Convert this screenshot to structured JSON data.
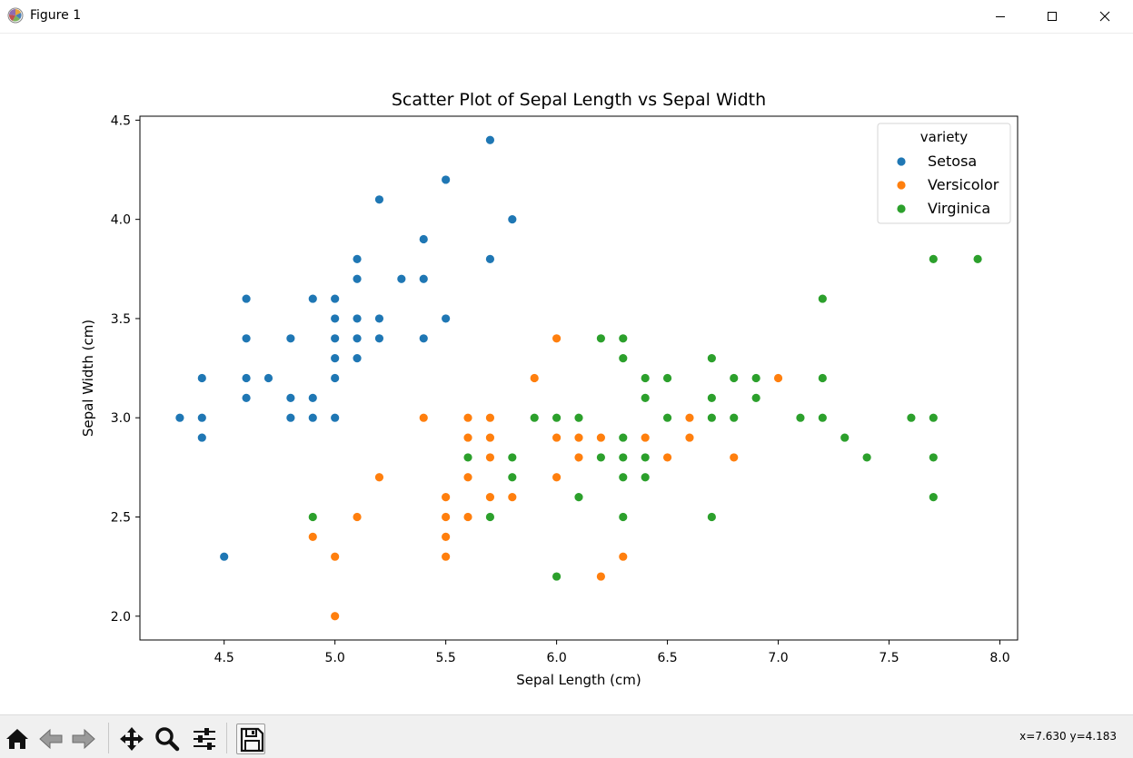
{
  "window": {
    "title": "Figure 1",
    "controls": [
      "minimize-icon",
      "maximize-icon",
      "close-icon"
    ]
  },
  "toolbar": {
    "buttons": [
      "home-icon",
      "back-arrow-icon",
      "forward-arrow-icon",
      "pan-move-icon",
      "zoom-magnifier-icon",
      "configure-subplots-icon",
      "save-disk-icon"
    ],
    "coordinates": "x=7.630 y=4.183"
  },
  "chart_data": {
    "type": "scatter",
    "title": "Scatter Plot of Sepal Length vs Sepal Width",
    "xlabel": "Sepal Length (cm)",
    "ylabel": "Sepal Width (cm)",
    "xlim": [
      4.12,
      8.08
    ],
    "ylim": [
      1.88,
      4.52
    ],
    "xticks": [
      "4.5",
      "5.0",
      "5.5",
      "6.0",
      "6.5",
      "7.0",
      "7.5",
      "8.0"
    ],
    "yticks": [
      "2.0",
      "2.5",
      "3.0",
      "3.5",
      "4.0",
      "4.5"
    ],
    "grid": false,
    "legend": {
      "title": "variety",
      "position": "top-right"
    },
    "series": [
      {
        "name": "Setosa",
        "color": "#1f77b4",
        "points": [
          [
            4.3,
            3.0
          ],
          [
            4.4,
            3.2
          ],
          [
            4.4,
            3.0
          ],
          [
            4.4,
            2.9
          ],
          [
            4.5,
            2.3
          ],
          [
            4.6,
            3.6
          ],
          [
            4.6,
            3.4
          ],
          [
            4.6,
            3.2
          ],
          [
            4.6,
            3.1
          ],
          [
            4.7,
            3.2
          ],
          [
            4.8,
            3.4
          ],
          [
            4.8,
            3.1
          ],
          [
            4.8,
            3.0
          ],
          [
            4.9,
            3.6
          ],
          [
            4.9,
            3.1
          ],
          [
            4.9,
            3.0
          ],
          [
            5.0,
            3.6
          ],
          [
            5.0,
            3.5
          ],
          [
            5.0,
            3.4
          ],
          [
            5.0,
            3.3
          ],
          [
            5.0,
            3.2
          ],
          [
            5.0,
            3.0
          ],
          [
            5.1,
            3.8
          ],
          [
            5.1,
            3.7
          ],
          [
            5.1,
            3.5
          ],
          [
            5.1,
            3.4
          ],
          [
            5.1,
            3.3
          ],
          [
            5.2,
            4.1
          ],
          [
            5.2,
            3.5
          ],
          [
            5.2,
            3.4
          ],
          [
            5.3,
            3.7
          ],
          [
            5.4,
            3.9
          ],
          [
            5.4,
            3.7
          ],
          [
            5.4,
            3.4
          ],
          [
            5.5,
            4.2
          ],
          [
            5.5,
            3.5
          ],
          [
            5.7,
            4.4
          ],
          [
            5.7,
            3.8
          ],
          [
            5.8,
            4.0
          ]
        ]
      },
      {
        "name": "Versicolor",
        "color": "#ff7f0e",
        "points": [
          [
            4.9,
            2.4
          ],
          [
            5.0,
            2.3
          ],
          [
            5.0,
            2.0
          ],
          [
            5.1,
            2.5
          ],
          [
            5.2,
            2.7
          ],
          [
            5.4,
            3.0
          ],
          [
            5.5,
            2.6
          ],
          [
            5.5,
            2.5
          ],
          [
            5.5,
            2.4
          ],
          [
            5.5,
            2.3
          ],
          [
            5.6,
            3.0
          ],
          [
            5.6,
            2.9
          ],
          [
            5.6,
            2.7
          ],
          [
            5.6,
            2.5
          ],
          [
            5.7,
            3.0
          ],
          [
            5.7,
            2.9
          ],
          [
            5.7,
            2.8
          ],
          [
            5.7,
            2.6
          ],
          [
            5.8,
            2.7
          ],
          [
            5.8,
            2.6
          ],
          [
            5.9,
            3.2
          ],
          [
            6.0,
            3.4
          ],
          [
            6.0,
            2.9
          ],
          [
            6.0,
            2.7
          ],
          [
            6.1,
            2.9
          ],
          [
            6.1,
            2.8
          ],
          [
            6.2,
            2.9
          ],
          [
            6.2,
            2.2
          ],
          [
            6.3,
            3.3
          ],
          [
            6.3,
            2.3
          ],
          [
            6.4,
            3.2
          ],
          [
            6.4,
            2.9
          ],
          [
            6.5,
            2.8
          ],
          [
            6.6,
            3.0
          ],
          [
            6.6,
            2.9
          ],
          [
            6.7,
            3.1
          ],
          [
            6.7,
            3.0
          ],
          [
            6.8,
            2.8
          ],
          [
            6.9,
            3.1
          ],
          [
            7.0,
            3.2
          ]
        ]
      },
      {
        "name": "Virginica",
        "color": "#2ca02c",
        "points": [
          [
            4.9,
            2.5
          ],
          [
            5.6,
            2.8
          ],
          [
            5.7,
            2.5
          ],
          [
            5.8,
            2.8
          ],
          [
            5.8,
            2.7
          ],
          [
            5.9,
            3.0
          ],
          [
            6.0,
            3.0
          ],
          [
            6.0,
            2.2
          ],
          [
            6.1,
            3.0
          ],
          [
            6.1,
            2.6
          ],
          [
            6.2,
            3.4
          ],
          [
            6.2,
            2.8
          ],
          [
            6.3,
            3.4
          ],
          [
            6.3,
            3.3
          ],
          [
            6.3,
            2.9
          ],
          [
            6.3,
            2.8
          ],
          [
            6.3,
            2.7
          ],
          [
            6.3,
            2.5
          ],
          [
            6.4,
            3.2
          ],
          [
            6.4,
            3.1
          ],
          [
            6.4,
            2.8
          ],
          [
            6.4,
            2.7
          ],
          [
            6.5,
            3.2
          ],
          [
            6.5,
            3.0
          ],
          [
            6.7,
            3.3
          ],
          [
            6.7,
            3.1
          ],
          [
            6.7,
            3.0
          ],
          [
            6.7,
            2.5
          ],
          [
            6.8,
            3.2
          ],
          [
            6.8,
            3.0
          ],
          [
            6.9,
            3.2
          ],
          [
            6.9,
            3.1
          ],
          [
            7.1,
            3.0
          ],
          [
            7.2,
            3.6
          ],
          [
            7.2,
            3.2
          ],
          [
            7.2,
            3.0
          ],
          [
            7.3,
            2.9
          ],
          [
            7.4,
            2.8
          ],
          [
            7.6,
            3.0
          ],
          [
            7.7,
            3.8
          ],
          [
            7.7,
            3.0
          ],
          [
            7.7,
            2.8
          ],
          [
            7.7,
            2.6
          ],
          [
            7.9,
            3.8
          ]
        ]
      }
    ]
  }
}
